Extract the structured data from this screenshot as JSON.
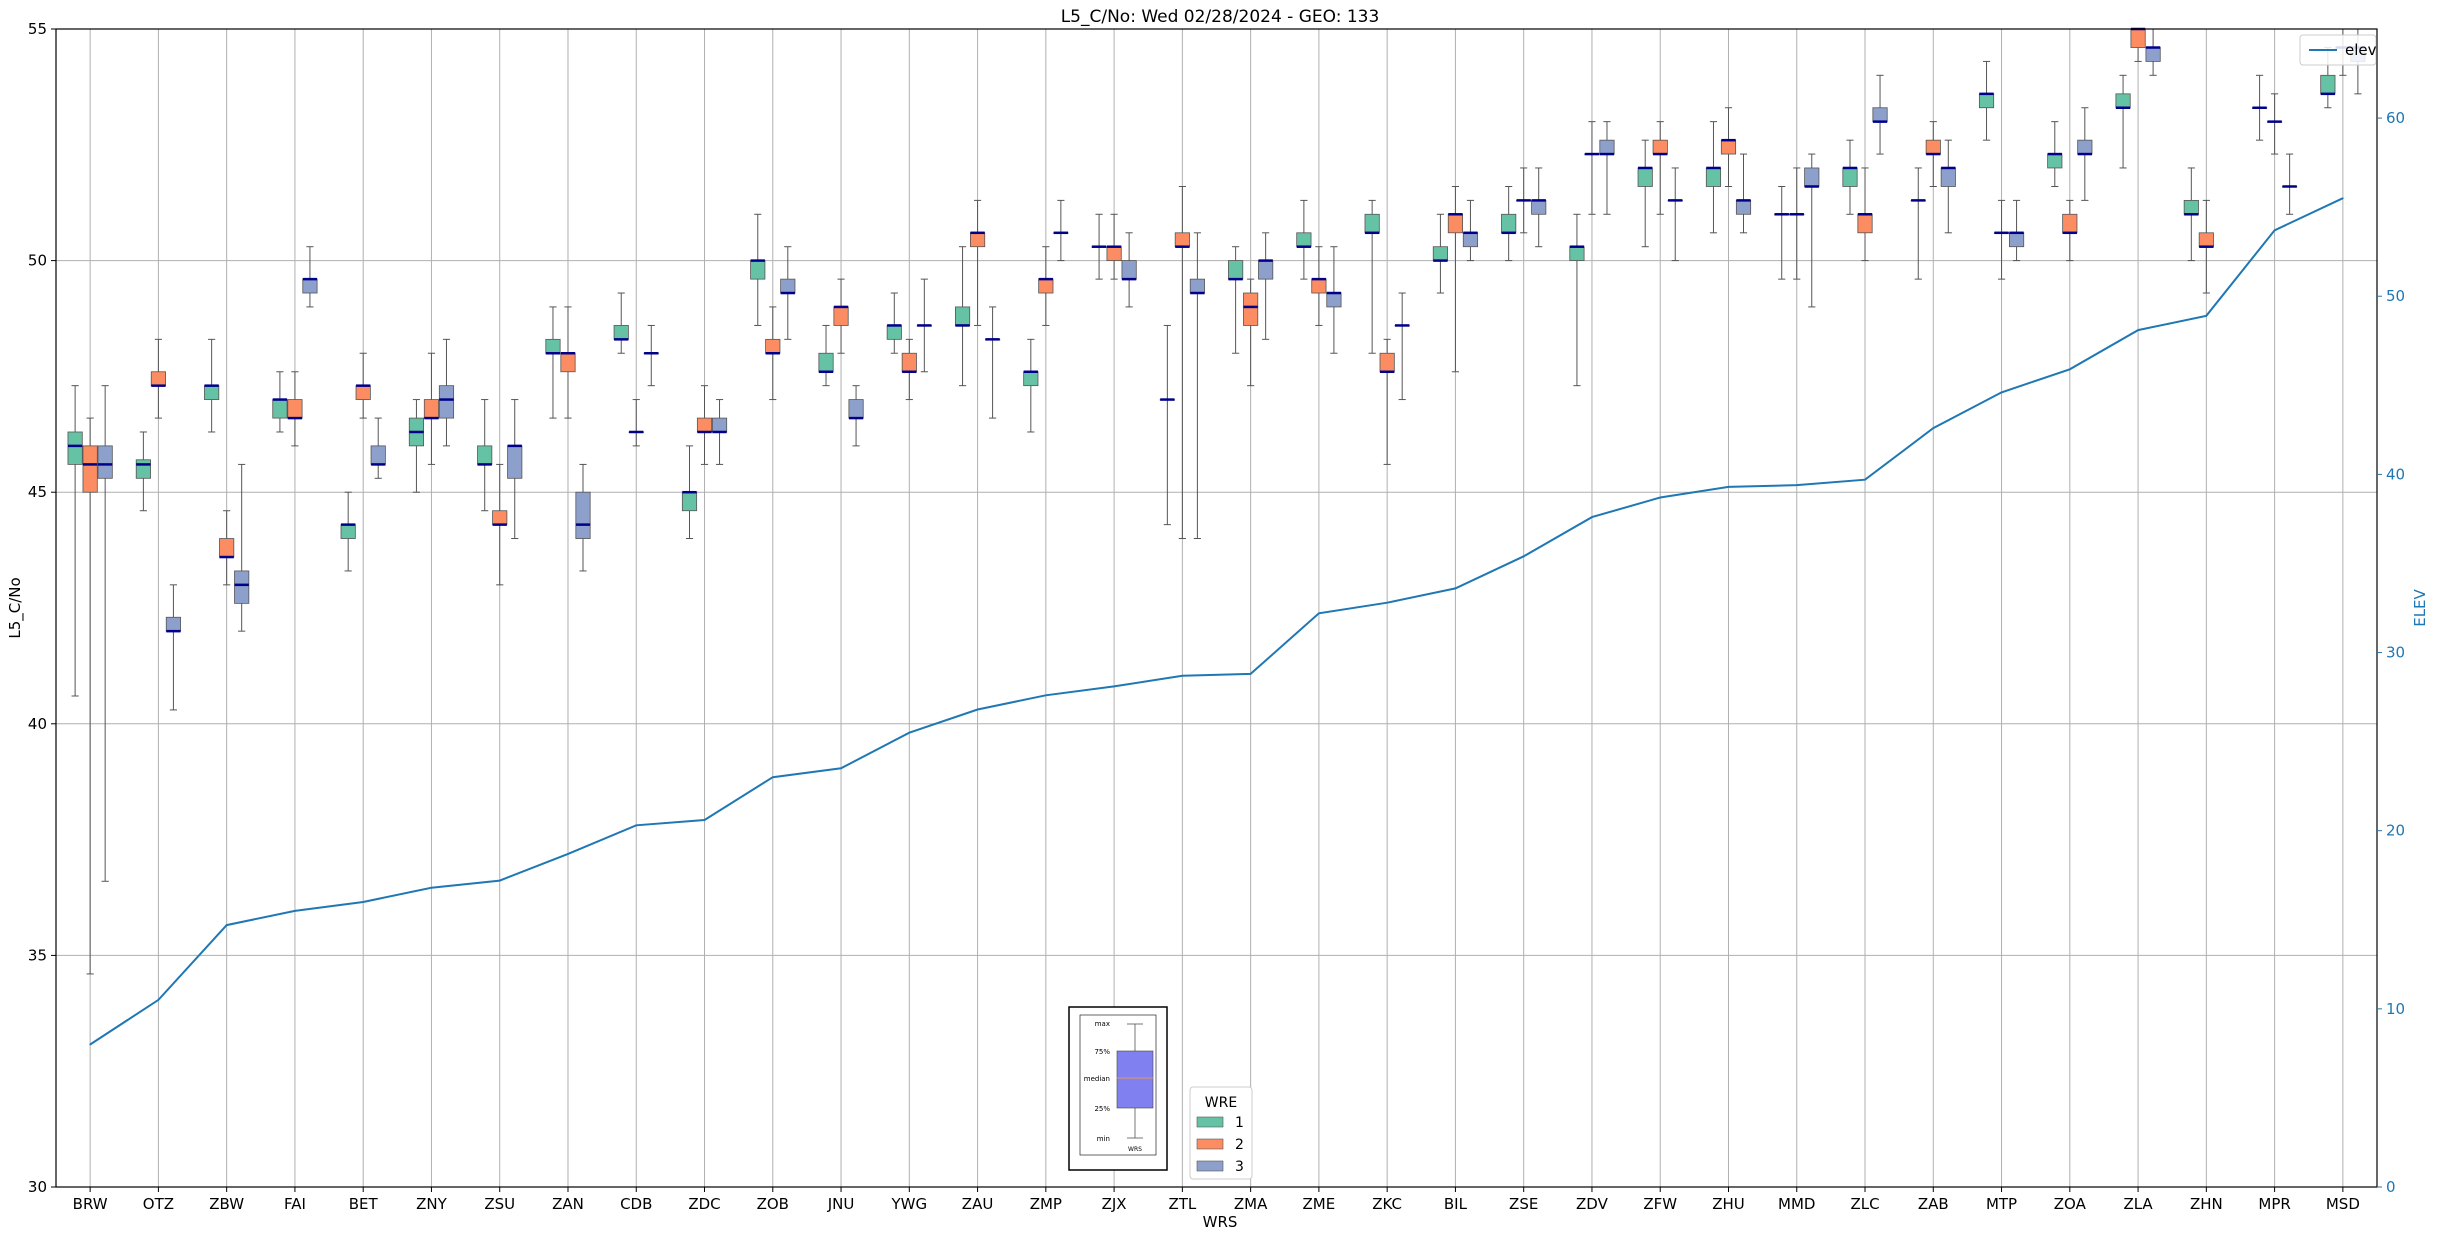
{
  "chart_data": {
    "type": "box",
    "title": "L5_C/No: Wed 02/28/2024 - GEO: 133",
    "xlabel": "WRS",
    "ylabel": "L5_C/No",
    "ylabel_right": "ELEV",
    "ylim": [
      30,
      55
    ],
    "ylim_right": [
      0,
      65
    ],
    "yticks": [
      "30",
      "35",
      "40",
      "45",
      "50",
      "55"
    ],
    "yticks_right": [
      "0",
      "10",
      "20",
      "30",
      "40",
      "50",
      "60"
    ],
    "grid": true,
    "categories": [
      "BRW",
      "OTZ",
      "ZBW",
      "FAI",
      "BET",
      "ZNY",
      "ZSU",
      "ZAN",
      "CDB",
      "ZDC",
      "ZOB",
      "JNU",
      "YWG",
      "ZAU",
      "ZMP",
      "ZJX",
      "ZTL",
      "ZMA",
      "ZME",
      "ZKC",
      "BIL",
      "ZSE",
      "ZDV",
      "ZFW",
      "ZHU",
      "MMD",
      "ZLC",
      "ZAB",
      "MTP",
      "ZOA",
      "ZLA",
      "ZHN",
      "MPR",
      "MSD"
    ],
    "series": [
      {
        "name": "1",
        "color": "#66c2a5",
        "boxes": [
          {
            "min": 40.6,
            "q1": 45.6,
            "median": 46.0,
            "q3": 46.3,
            "max": 47.3
          },
          {
            "min": 44.6,
            "q1": 45.3,
            "median": 45.6,
            "q3": 45.7,
            "max": 46.3
          },
          {
            "min": 46.3,
            "q1": 47.0,
            "median": 47.3,
            "q3": 47.3,
            "max": 48.3
          },
          {
            "min": 46.3,
            "q1": 46.6,
            "median": 47.0,
            "q3": 47.0,
            "max": 47.6
          },
          {
            "min": 43.3,
            "q1": 44.0,
            "median": 44.3,
            "q3": 44.3,
            "max": 45.0
          },
          {
            "min": 45.0,
            "q1": 46.0,
            "median": 46.3,
            "q3": 46.6,
            "max": 47.0
          },
          {
            "min": 44.6,
            "q1": 45.6,
            "median": 45.6,
            "q3": 46.0,
            "max": 47.0
          },
          {
            "min": 46.6,
            "q1": 48.0,
            "median": 48.0,
            "q3": 48.3,
            "max": 49.0
          },
          {
            "min": 48.0,
            "q1": 48.3,
            "median": 48.3,
            "q3": 48.6,
            "max": 49.3
          },
          {
            "min": 44.0,
            "q1": 44.6,
            "median": 45.0,
            "q3": 45.0,
            "max": 46.0
          },
          {
            "min": 48.6,
            "q1": 49.6,
            "median": 50.0,
            "q3": 50.0,
            "max": 51.0
          },
          {
            "min": 47.3,
            "q1": 47.6,
            "median": 47.6,
            "q3": 48.0,
            "max": 48.6
          },
          {
            "min": 48.0,
            "q1": 48.3,
            "median": 48.6,
            "q3": 48.6,
            "max": 49.3
          },
          {
            "min": 47.3,
            "q1": 48.6,
            "median": 48.6,
            "q3": 49.0,
            "max": 50.3
          },
          {
            "min": 46.3,
            "q1": 47.3,
            "median": 47.6,
            "q3": 47.6,
            "max": 48.3
          },
          {
            "min": 49.6,
            "q1": 50.3,
            "median": 50.3,
            "q3": 50.3,
            "max": 51.0
          },
          {
            "min": 44.3,
            "q1": 47.0,
            "median": 47.0,
            "q3": 47.0,
            "max": 48.6
          },
          {
            "min": 48.0,
            "q1": 49.6,
            "median": 49.6,
            "q3": 50.0,
            "max": 50.3
          },
          {
            "min": 49.6,
            "q1": 50.3,
            "median": 50.3,
            "q3": 50.6,
            "max": 51.3
          },
          {
            "min": 48.0,
            "q1": 50.6,
            "median": 50.6,
            "q3": 51.0,
            "max": 51.3
          },
          {
            "min": 49.3,
            "q1": 50.0,
            "median": 50.0,
            "q3": 50.3,
            "max": 51.0
          },
          {
            "min": 50.0,
            "q1": 50.6,
            "median": 50.6,
            "q3": 51.0,
            "max": 51.6
          },
          {
            "min": 47.3,
            "q1": 50.0,
            "median": 50.3,
            "q3": 50.3,
            "max": 51.0
          },
          {
            "min": 50.3,
            "q1": 51.6,
            "median": 52.0,
            "q3": 52.0,
            "max": 52.6
          },
          {
            "min": 50.6,
            "q1": 51.6,
            "median": 52.0,
            "q3": 52.0,
            "max": 53.0
          },
          {
            "min": 49.6,
            "q1": 51.0,
            "median": 51.0,
            "q3": 51.0,
            "max": 51.6
          },
          {
            "min": 51.0,
            "q1": 51.6,
            "median": 52.0,
            "q3": 52.0,
            "max": 52.6
          },
          {
            "min": 49.6,
            "q1": 51.3,
            "median": 51.3,
            "q3": 51.3,
            "max": 52.0
          },
          {
            "min": 52.6,
            "q1": 53.3,
            "median": 53.6,
            "q3": 53.6,
            "max": 54.3
          },
          {
            "min": 51.6,
            "q1": 52.0,
            "median": 52.3,
            "q3": 52.3,
            "max": 53.0
          },
          {
            "min": 52.0,
            "q1": 53.3,
            "median": 53.3,
            "q3": 53.6,
            "max": 54.0
          },
          {
            "min": 50.0,
            "q1": 51.0,
            "median": 51.0,
            "q3": 51.3,
            "max": 52.0
          },
          {
            "min": 52.6,
            "q1": 53.3,
            "median": 53.3,
            "q3": 53.3,
            "max": 54.0
          },
          {
            "min": 53.3,
            "q1": 53.6,
            "median": 53.6,
            "q3": 54.0,
            "max": 54.6
          }
        ]
      },
      {
        "name": "2",
        "color": "#fc8d62",
        "boxes": [
          {
            "min": 34.6,
            "q1": 45.0,
            "median": 45.6,
            "q3": 46.0,
            "max": 46.6
          },
          {
            "min": 46.6,
            "q1": 47.3,
            "median": 47.3,
            "q3": 47.6,
            "max": 48.3
          },
          {
            "min": 43.0,
            "q1": 43.6,
            "median": 43.6,
            "q3": 44.0,
            "max": 44.6
          },
          {
            "min": 46.0,
            "q1": 46.6,
            "median": 46.6,
            "q3": 47.0,
            "max": 47.6
          },
          {
            "min": 46.6,
            "q1": 47.0,
            "median": 47.3,
            "q3": 47.3,
            "max": 48.0
          },
          {
            "min": 45.6,
            "q1": 46.6,
            "median": 46.6,
            "q3": 47.0,
            "max": 48.0
          },
          {
            "min": 43.0,
            "q1": 44.3,
            "median": 44.3,
            "q3": 44.6,
            "max": 45.6
          },
          {
            "min": 46.6,
            "q1": 47.6,
            "median": 48.0,
            "q3": 48.0,
            "max": 49.0
          },
          {
            "min": 46.0,
            "q1": 46.3,
            "median": 46.3,
            "q3": 46.3,
            "max": 47.0
          },
          {
            "min": 45.6,
            "q1": 46.3,
            "median": 46.3,
            "q3": 46.6,
            "max": 47.3
          },
          {
            "min": 47.0,
            "q1": 48.0,
            "median": 48.0,
            "q3": 48.3,
            "max": 49.0
          },
          {
            "min": 48.0,
            "q1": 48.6,
            "median": 49.0,
            "q3": 49.0,
            "max": 49.6
          },
          {
            "min": 47.0,
            "q1": 47.6,
            "median": 47.6,
            "q3": 48.0,
            "max": 48.3
          },
          {
            "min": 48.6,
            "q1": 50.3,
            "median": 50.6,
            "q3": 50.6,
            "max": 51.3
          },
          {
            "min": 48.6,
            "q1": 49.3,
            "median": 49.6,
            "q3": 49.6,
            "max": 50.3
          },
          {
            "min": 49.6,
            "q1": 50.0,
            "median": 50.3,
            "q3": 50.3,
            "max": 51.0
          },
          {
            "min": 44.0,
            "q1": 50.3,
            "median": 50.3,
            "q3": 50.6,
            "max": 51.6
          },
          {
            "min": 47.3,
            "q1": 48.6,
            "median": 49.0,
            "q3": 49.3,
            "max": 49.6
          },
          {
            "min": 48.6,
            "q1": 49.3,
            "median": 49.6,
            "q3": 49.6,
            "max": 50.3
          },
          {
            "min": 45.6,
            "q1": 47.6,
            "median": 47.6,
            "q3": 48.0,
            "max": 48.3
          },
          {
            "min": 47.6,
            "q1": 50.6,
            "median": 51.0,
            "q3": 51.0,
            "max": 51.6
          },
          {
            "min": 50.6,
            "q1": 51.3,
            "median": 51.3,
            "q3": 51.3,
            "max": 52.0
          },
          {
            "min": 51.0,
            "q1": 52.3,
            "median": 52.3,
            "q3": 52.3,
            "max": 53.0
          },
          {
            "min": 51.0,
            "q1": 52.3,
            "median": 52.3,
            "q3": 52.6,
            "max": 53.0
          },
          {
            "min": 51.6,
            "q1": 52.3,
            "median": 52.6,
            "q3": 52.6,
            "max": 53.3
          },
          {
            "min": 49.6,
            "q1": 51.0,
            "median": 51.0,
            "q3": 51.0,
            "max": 52.0
          },
          {
            "min": 50.0,
            "q1": 50.6,
            "median": 51.0,
            "q3": 51.0,
            "max": 52.0
          },
          {
            "min": 51.6,
            "q1": 52.3,
            "median": 52.3,
            "q3": 52.6,
            "max": 53.0
          },
          {
            "min": 49.6,
            "q1": 50.6,
            "median": 50.6,
            "q3": 50.6,
            "max": 51.3
          },
          {
            "min": 50.0,
            "q1": 50.6,
            "median": 50.6,
            "q3": 51.0,
            "max": 51.3
          },
          {
            "min": 54.3,
            "q1": 54.6,
            "median": 55.0,
            "q3": 55.0,
            "max": 55.0
          },
          {
            "min": 49.3,
            "q1": 50.3,
            "median": 50.3,
            "q3": 50.6,
            "max": 51.3
          },
          {
            "min": 52.3,
            "q1": 53.0,
            "median": 53.0,
            "q3": 53.0,
            "max": 53.6
          },
          {
            "min": 54.0,
            "q1": 54.6,
            "median": 54.6,
            "q3": 54.6,
            "max": 55.0
          }
        ]
      },
      {
        "name": "3",
        "color": "#8da0cb",
        "boxes": [
          {
            "min": 36.6,
            "q1": 45.3,
            "median": 45.6,
            "q3": 46.0,
            "max": 47.3
          },
          {
            "min": 40.3,
            "q1": 42.0,
            "median": 42.0,
            "q3": 42.3,
            "max": 43.0
          },
          {
            "min": 42.0,
            "q1": 42.6,
            "median": 43.0,
            "q3": 43.3,
            "max": 45.6
          },
          {
            "min": 49.0,
            "q1": 49.3,
            "median": 49.6,
            "q3": 49.6,
            "max": 50.3
          },
          {
            "min": 45.3,
            "q1": 45.6,
            "median": 45.6,
            "q3": 46.0,
            "max": 46.6
          },
          {
            "min": 46.0,
            "q1": 46.6,
            "median": 47.0,
            "q3": 47.3,
            "max": 48.3
          },
          {
            "min": 44.0,
            "q1": 45.3,
            "median": 46.0,
            "q3": 46.0,
            "max": 47.0
          },
          {
            "min": 43.3,
            "q1": 44.0,
            "median": 44.3,
            "q3": 45.0,
            "max": 45.6
          },
          {
            "min": 47.3,
            "q1": 48.0,
            "median": 48.0,
            "q3": 48.0,
            "max": 48.6
          },
          {
            "min": 45.6,
            "q1": 46.3,
            "median": 46.3,
            "q3": 46.6,
            "max": 47.0
          },
          {
            "min": 48.3,
            "q1": 49.3,
            "median": 49.3,
            "q3": 49.6,
            "max": 50.3
          },
          {
            "min": 46.0,
            "q1": 46.6,
            "median": 46.6,
            "q3": 47.0,
            "max": 47.3
          },
          {
            "min": 47.6,
            "q1": 48.6,
            "median": 48.6,
            "q3": 48.6,
            "max": 49.6
          },
          {
            "min": 46.6,
            "q1": 48.3,
            "median": 48.3,
            "q3": 48.3,
            "max": 49.0
          },
          {
            "min": 50.0,
            "q1": 50.6,
            "median": 50.6,
            "q3": 50.6,
            "max": 51.3
          },
          {
            "min": 49.0,
            "q1": 49.6,
            "median": 49.6,
            "q3": 50.0,
            "max": 50.6
          },
          {
            "min": 44.0,
            "q1": 49.3,
            "median": 49.3,
            "q3": 49.6,
            "max": 50.6
          },
          {
            "min": 48.3,
            "q1": 49.6,
            "median": 50.0,
            "q3": 50.0,
            "max": 50.6
          },
          {
            "min": 48.0,
            "q1": 49.0,
            "median": 49.3,
            "q3": 49.3,
            "max": 50.3
          },
          {
            "min": 47.0,
            "q1": 48.6,
            "median": 48.6,
            "q3": 48.6,
            "max": 49.3
          },
          {
            "min": 50.0,
            "q1": 50.3,
            "median": 50.6,
            "q3": 50.6,
            "max": 51.3
          },
          {
            "min": 50.3,
            "q1": 51.0,
            "median": 51.3,
            "q3": 51.3,
            "max": 52.0
          },
          {
            "min": 51.0,
            "q1": 52.3,
            "median": 52.3,
            "q3": 52.6,
            "max": 53.0
          },
          {
            "min": 50.0,
            "q1": 51.3,
            "median": 51.3,
            "q3": 51.3,
            "max": 52.0
          },
          {
            "min": 50.6,
            "q1": 51.0,
            "median": 51.3,
            "q3": 51.3,
            "max": 52.3
          },
          {
            "min": 49.0,
            "q1": 51.6,
            "median": 51.6,
            "q3": 52.0,
            "max": 52.3
          },
          {
            "min": 52.3,
            "q1": 53.0,
            "median": 53.0,
            "q3": 53.3,
            "max": 54.0
          },
          {
            "min": 50.6,
            "q1": 51.6,
            "median": 52.0,
            "q3": 52.0,
            "max": 52.6
          },
          {
            "min": 50.0,
            "q1": 50.3,
            "median": 50.6,
            "q3": 50.6,
            "max": 51.3
          },
          {
            "min": 51.3,
            "q1": 52.3,
            "median": 52.3,
            "q3": 52.6,
            "max": 53.3
          },
          {
            "min": 54.0,
            "q1": 54.3,
            "median": 54.6,
            "q3": 54.6,
            "max": 55.0
          },
          {
            "min": 0,
            "q1": 0,
            "median": 0,
            "q3": 0,
            "max": 0,
            "hidden": true
          },
          {
            "min": 51.0,
            "q1": 51.6,
            "median": 51.6,
            "q3": 51.6,
            "max": 52.3
          },
          {
            "min": 53.6,
            "q1": 54.3,
            "median": 54.6,
            "q3": 54.6,
            "max": 55.0
          }
        ]
      }
    ],
    "elev_line": {
      "name": "elev",
      "color": "#1f77b4",
      "values": [
        8.0,
        10.5,
        14.7,
        15.5,
        16.0,
        16.8,
        17.2,
        18.7,
        20.3,
        20.6,
        23.0,
        23.5,
        25.5,
        26.8,
        27.6,
        28.1,
        28.7,
        28.8,
        32.2,
        32.8,
        33.6,
        35.4,
        37.6,
        38.7,
        39.3,
        39.4,
        39.7,
        42.6,
        44.6,
        45.9,
        48.1,
        48.9,
        53.7,
        55.5
      ]
    },
    "legend_wre": {
      "title": "WRE",
      "entries": [
        "1",
        "2",
        "3"
      ]
    },
    "legend_elev": {
      "label": "elev",
      "placement": "top-right"
    },
    "inset_boxplot_key": {
      "labels": [
        "max",
        "75%",
        "median",
        "25%",
        "min"
      ],
      "xlabel": "WRS",
      "color": "#8080f0"
    }
  }
}
